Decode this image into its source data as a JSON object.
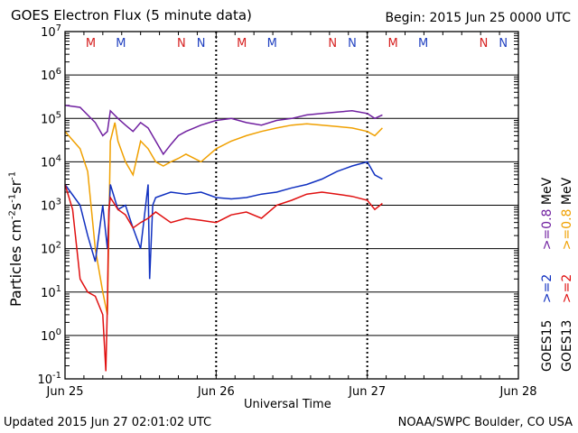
{
  "header": {
    "title": "GOES Electron Flux (5 minute data)",
    "begin": "Begin: 2015 Jun 25 0000 UTC"
  },
  "footer": {
    "updated": "Updated 2015 Jun 27 02:01:02 UTC",
    "source": "NOAA/SWPC Boulder, CO USA"
  },
  "axes": {
    "xlabel": "Universal Time",
    "ylabel_parts": [
      "Particles cm",
      "-2",
      "s",
      "-1",
      "sr",
      "-1"
    ],
    "x_ticks": [
      "Jun 25",
      "Jun 26",
      "Jun 27",
      "Jun 28"
    ],
    "y_ticks": [
      {
        "base": "10",
        "exp": "7"
      },
      {
        "base": "10",
        "exp": "6"
      },
      {
        "base": "10",
        "exp": "5"
      },
      {
        "base": "10",
        "exp": "4"
      },
      {
        "base": "10",
        "exp": "3"
      },
      {
        "base": "10",
        "exp": "2"
      },
      {
        "base": "10",
        "exp": "1"
      },
      {
        "base": "10",
        "exp": "0"
      },
      {
        "base": "10",
        "exp": "-1"
      }
    ]
  },
  "markers": {
    "sequence": [
      "M",
      "M",
      "N",
      "N"
    ],
    "colors": {
      "first": "#d62020",
      "second": "#2040c0"
    }
  },
  "legend": {
    "goes13": {
      "name": "GOES13",
      "e2": ">=2",
      "e08": ">=0.8",
      "unit": "MeV"
    },
    "goes15": {
      "name": "GOES15",
      "e2": ">=2",
      "e08": ">=0.8",
      "unit": "MeV"
    }
  },
  "chart_data": {
    "type": "line",
    "xlim": [
      0,
      3
    ],
    "ylim_log10": [
      -1,
      7
    ],
    "x_unit": "days since Jun 25 00:00 UTC",
    "threshold_y": 1000,
    "series": [
      {
        "name": "GOES15 >=0.8 MeV",
        "color": "#7020a0",
        "x": [
          0,
          0.1,
          0.2,
          0.25,
          0.28,
          0.3,
          0.35,
          0.4,
          0.45,
          0.5,
          0.55,
          0.6,
          0.65,
          0.7,
          0.75,
          0.8,
          0.9,
          1.0,
          1.1,
          1.2,
          1.3,
          1.4,
          1.5,
          1.6,
          1.7,
          1.8,
          1.9,
          2.0,
          2.05,
          2.1
        ],
        "y": [
          200000,
          180000,
          80000,
          40000,
          50000,
          150000,
          100000,
          70000,
          50000,
          80000,
          60000,
          30000,
          15000,
          25000,
          40000,
          50000,
          70000,
          90000,
          100000,
          80000,
          70000,
          90000,
          100000,
          120000,
          130000,
          140000,
          150000,
          130000,
          100000,
          120000
        ]
      },
      {
        "name": "GOES13 >=0.8 MeV",
        "color": "#f0a000",
        "x": [
          0,
          0.1,
          0.15,
          0.2,
          0.25,
          0.28,
          0.3,
          0.33,
          0.35,
          0.4,
          0.45,
          0.5,
          0.55,
          0.6,
          0.65,
          0.7,
          0.75,
          0.8,
          0.9,
          1.0,
          1.1,
          1.2,
          1.3,
          1.4,
          1.5,
          1.6,
          1.7,
          1.8,
          1.9,
          2.0,
          2.05,
          2.1
        ],
        "y": [
          50000,
          20000,
          6000,
          100,
          10,
          3,
          30000,
          80000,
          30000,
          10000,
          5000,
          30000,
          20000,
          10000,
          8000,
          10000,
          12000,
          15000,
          10000,
          20000,
          30000,
          40000,
          50000,
          60000,
          70000,
          75000,
          70000,
          65000,
          60000,
          50000,
          40000,
          60000
        ]
      },
      {
        "name": "GOES15 >=2 MeV",
        "color": "#1030c0",
        "x": [
          0,
          0.1,
          0.15,
          0.2,
          0.25,
          0.28,
          0.3,
          0.35,
          0.4,
          0.45,
          0.5,
          0.55,
          0.56,
          0.58,
          0.6,
          0.7,
          0.8,
          0.9,
          1.0,
          1.1,
          1.2,
          1.3,
          1.4,
          1.5,
          1.6,
          1.7,
          1.8,
          1.9,
          2.0,
          2.05,
          2.1
        ],
        "y": [
          3000,
          1000,
          200,
          50,
          1000,
          100,
          3000,
          800,
          1000,
          300,
          100,
          3000,
          20,
          1000,
          1500,
          2000,
          1800,
          2000,
          1500,
          1400,
          1500,
          1800,
          2000,
          2500,
          3000,
          4000,
          6000,
          8000,
          10000,
          5000,
          4000
        ]
      },
      {
        "name": "GOES13 >=2 MeV",
        "color": "#e01010",
        "x": [
          0,
          0.05,
          0.1,
          0.15,
          0.2,
          0.25,
          0.27,
          0.28,
          0.29,
          0.3,
          0.35,
          0.4,
          0.45,
          0.5,
          0.55,
          0.6,
          0.7,
          0.8,
          0.9,
          1.0,
          1.1,
          1.2,
          1.3,
          1.4,
          1.5,
          1.6,
          1.7,
          1.8,
          1.9,
          2.0,
          2.05,
          2.1
        ],
        "y": [
          3000,
          800,
          20,
          10,
          8,
          3,
          0.15,
          5,
          800,
          1500,
          800,
          600,
          300,
          400,
          500,
          700,
          400,
          500,
          450,
          400,
          600,
          700,
          500,
          1000,
          1300,
          1800,
          2000,
          1800,
          1600,
          1300,
          800,
          1100
        ]
      }
    ]
  }
}
